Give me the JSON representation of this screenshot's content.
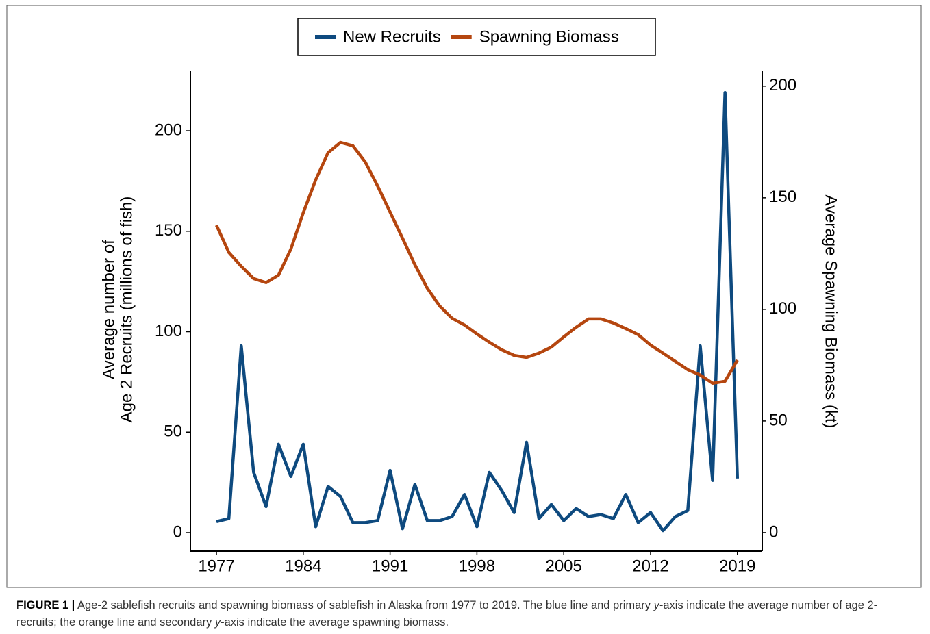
{
  "chart_data": {
    "type": "line",
    "y_title_lines": [
      "Average number of",
      "Age 2 Recruits (millions of fish)"
    ],
    "y2_title": "Average Spawning Biomass (kt)",
    "x": [
      1977,
      1978,
      1979,
      1980,
      1981,
      1982,
      1983,
      1984,
      1985,
      1986,
      1987,
      1988,
      1989,
      1990,
      1991,
      1992,
      1993,
      1994,
      1995,
      1996,
      1997,
      1998,
      1999,
      2000,
      2001,
      2002,
      2003,
      2004,
      2005,
      2006,
      2007,
      2008,
      2009,
      2010,
      2011,
      2012,
      2013,
      2014,
      2015,
      2016,
      2017,
      2018,
      2019
    ],
    "series": [
      {
        "name": "New Recruits",
        "color": "#0e4a7f",
        "axis": "y",
        "values": [
          5.5,
          7,
          93,
          30,
          13,
          44,
          28,
          44,
          3,
          23,
          18,
          5,
          5,
          6,
          31,
          2,
          24,
          6,
          6,
          8,
          19,
          3,
          30,
          21,
          10,
          45,
          7,
          14,
          6,
          12,
          8,
          9,
          7,
          19,
          5,
          10,
          1,
          8,
          11,
          93,
          26,
          219,
          27
        ]
      },
      {
        "name": "Spawning Biomass",
        "color": "#b5460f",
        "axis": "y2",
        "values": [
          137.7,
          125.5,
          119.3,
          113.8,
          112,
          115.3,
          127,
          143.3,
          158,
          170.2,
          174.8,
          173.3,
          166,
          155.2,
          143.6,
          131.9,
          120,
          109.5,
          101.5,
          96,
          93,
          89,
          85.3,
          81.9,
          79.4,
          78.5,
          80.4,
          83.1,
          87.7,
          92,
          95.7,
          95.7,
          93.9,
          91.4,
          88.7,
          84,
          80.4,
          76.7,
          73,
          70.6,
          66.9,
          67.8,
          77.3
        ]
      }
    ],
    "xlim": [
      1974.9,
      2021.0
    ],
    "xticks": [
      1977,
      1984,
      1991,
      1998,
      2005,
      2012,
      2019
    ],
    "ylim": [
      -9.2,
      230
    ],
    "yticks": [
      0,
      50,
      100,
      150,
      200
    ],
    "y2lim": [
      -8.3,
      207
    ],
    "y2ticks": [
      0,
      50,
      100,
      150,
      200
    ],
    "legend": "top",
    "caption": {
      "label": "FIGURE 1 |",
      "parts": [
        " Age-2 sablefish recruits and spawning biomass of sablefish in Alaska from 1977 to 2019. The blue line and primary ",
        "y",
        "-axis indicate the average number of age 2-recruits; the orange line and secondary ",
        "y",
        "-axis indicate the average spawning biomass."
      ]
    }
  }
}
